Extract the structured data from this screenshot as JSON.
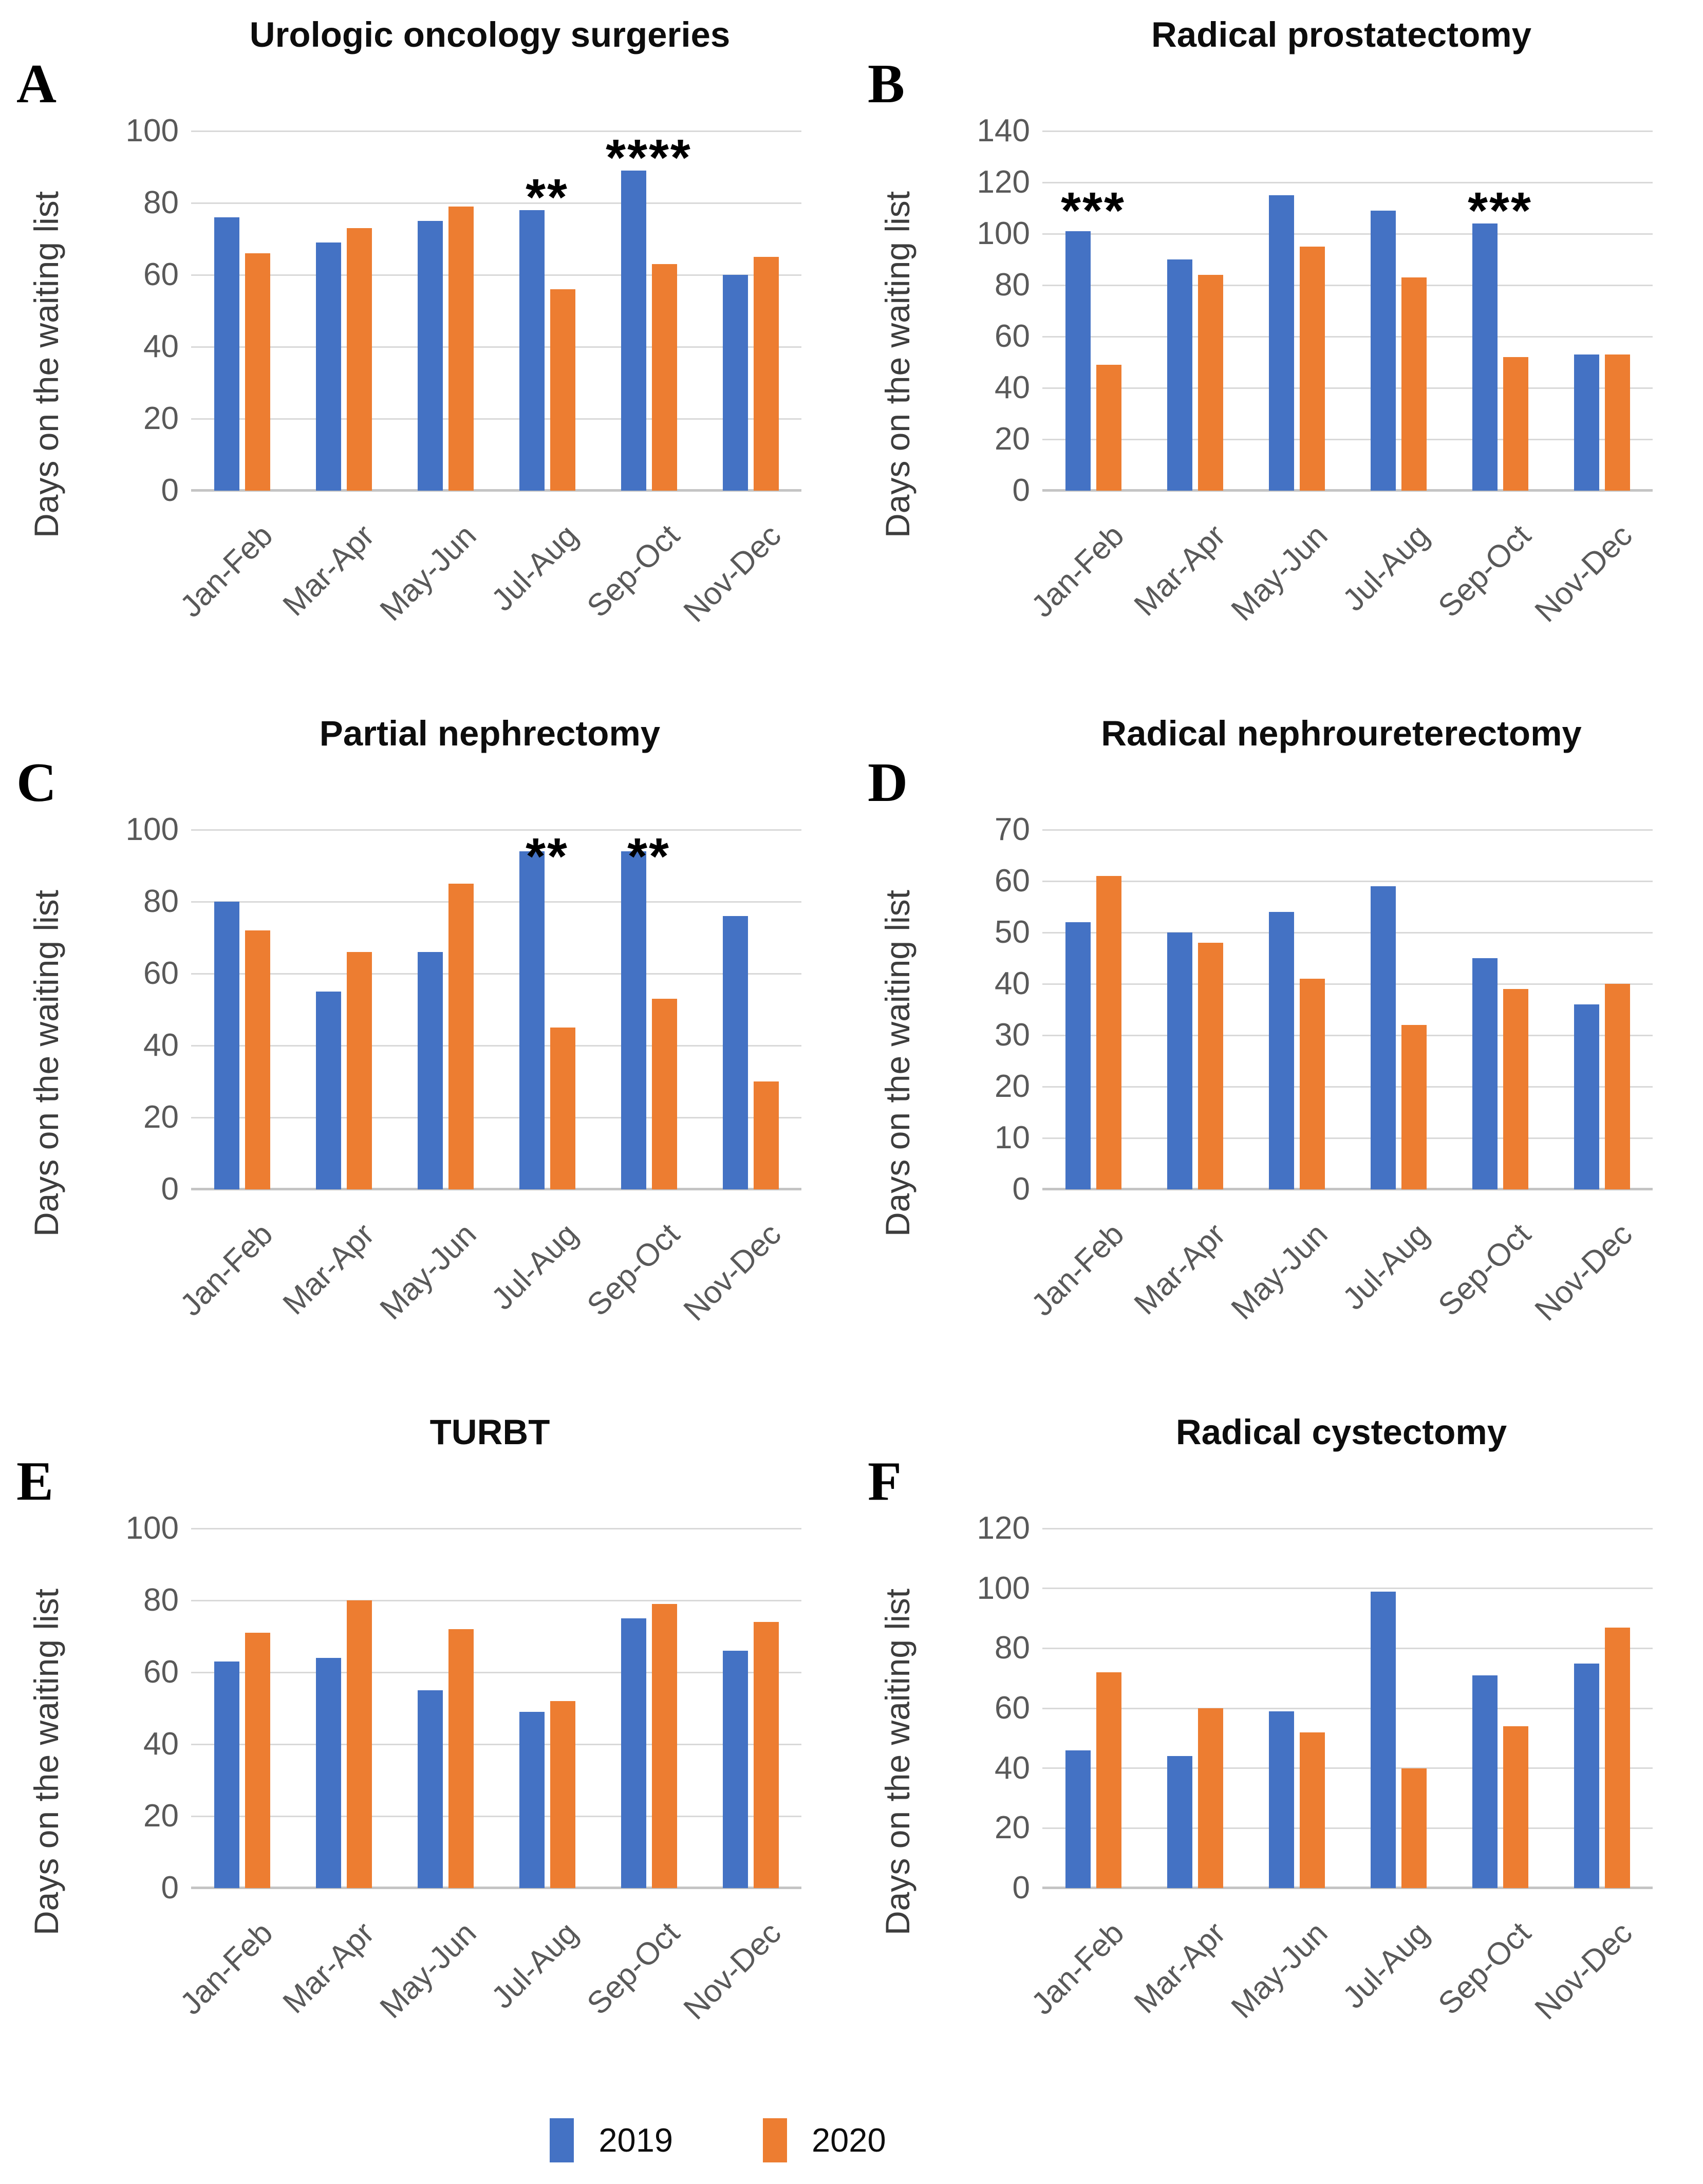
{
  "legend": {
    "items": [
      {
        "label": "2019",
        "color": "#4472C4"
      },
      {
        "label": "2020",
        "color": "#ED7D31"
      }
    ]
  },
  "colors": {
    "bar_2019": "#4472C4",
    "bar_2020": "#ED7D31",
    "gridline": "#d9d9d9",
    "axis_baseline": "#c4c4c4",
    "tick_text": "#595959",
    "ylabel_text": "#3d3d3d",
    "title_text": "#0d0d0d",
    "annotation_text": "#000000"
  },
  "chart_data": [
    {
      "type": "bar",
      "panel": "A",
      "title": "Urologic oncology surgeries",
      "ylabel": "Days on the waiting list",
      "categories": [
        "Jan-Feb",
        "Mar-Apr",
        "May-Jun",
        "Jul-Aug",
        "Sep-Oct",
        "Nov-Dec"
      ],
      "series": [
        {
          "name": "2019",
          "color": "#4472C4",
          "values": [
            76,
            69,
            75,
            78,
            89,
            60
          ]
        },
        {
          "name": "2020",
          "color": "#ED7D31",
          "values": [
            66,
            73,
            79,
            56,
            63,
            65
          ]
        }
      ],
      "ylim": [
        0,
        100
      ],
      "yticks": [
        0,
        20,
        40,
        60,
        80,
        100
      ],
      "grid": "horizontal",
      "annotations": [
        {
          "category_index": 3,
          "text": "**",
          "y": 78
        },
        {
          "category_index": 4,
          "text": "****",
          "y": 89
        }
      ]
    },
    {
      "type": "bar",
      "panel": "B",
      "title": "Radical prostatectomy",
      "ylabel": "Days on the waiting list",
      "categories": [
        "Jan-Feb",
        "Mar-Apr",
        "May-Jun",
        "Jul-Aug",
        "Sep-Oct",
        "Nov-Dec"
      ],
      "series": [
        {
          "name": "2019",
          "color": "#4472C4",
          "values": [
            101,
            90,
            115,
            109,
            104,
            53
          ]
        },
        {
          "name": "2020",
          "color": "#ED7D31",
          "values": [
            49,
            84,
            95,
            83,
            52,
            53
          ]
        }
      ],
      "ylim": [
        0,
        140
      ],
      "yticks": [
        0,
        20,
        40,
        60,
        80,
        100,
        120,
        140
      ],
      "grid": "horizontal",
      "annotations": [
        {
          "category_index": 0,
          "text": "***",
          "y": 104
        },
        {
          "category_index": 4,
          "text": "***",
          "y": 104
        }
      ]
    },
    {
      "type": "bar",
      "panel": "C",
      "title": "Partial nephrectomy",
      "ylabel": "Days on the waiting list",
      "categories": [
        "Jan-Feb",
        "Mar-Apr",
        "May-Jun",
        "Jul-Aug",
        "Sep-Oct",
        "Nov-Dec"
      ],
      "series": [
        {
          "name": "2019",
          "color": "#4472C4",
          "values": [
            80,
            55,
            66,
            94,
            94,
            76
          ]
        },
        {
          "name": "2020",
          "color": "#ED7D31",
          "values": [
            72,
            66,
            85,
            45,
            53,
            30
          ]
        }
      ],
      "ylim": [
        0,
        100
      ],
      "yticks": [
        0,
        20,
        40,
        60,
        80,
        100
      ],
      "grid": "horizontal",
      "annotations": [
        {
          "category_index": 3,
          "text": "**",
          "y": 89
        },
        {
          "category_index": 4,
          "text": "**",
          "y": 89
        }
      ]
    },
    {
      "type": "bar",
      "panel": "D",
      "title": "Radical nephroureterectomy",
      "ylabel": "Days on the waiting list",
      "categories": [
        "Jan-Feb",
        "Mar-Apr",
        "May-Jun",
        "Jul-Aug",
        "Sep-Oct",
        "Nov-Dec"
      ],
      "series": [
        {
          "name": "2019",
          "color": "#4472C4",
          "values": [
            52,
            50,
            54,
            59,
            45,
            36
          ]
        },
        {
          "name": "2020",
          "color": "#ED7D31",
          "values": [
            61,
            48,
            41,
            32,
            39,
            40
          ]
        }
      ],
      "ylim": [
        0,
        70
      ],
      "yticks": [
        0,
        10,
        20,
        30,
        40,
        50,
        60,
        70
      ],
      "grid": "horizontal",
      "annotations": []
    },
    {
      "type": "bar",
      "panel": "E",
      "title": "TURBT",
      "ylabel": "Days on the waiting list",
      "categories": [
        "Jan-Feb",
        "Mar-Apr",
        "May-Jun",
        "Jul-Aug",
        "Sep-Oct",
        "Nov-Dec"
      ],
      "series": [
        {
          "name": "2019",
          "color": "#4472C4",
          "values": [
            63,
            64,
            55,
            49,
            75,
            66
          ]
        },
        {
          "name": "2020",
          "color": "#ED7D31",
          "values": [
            71,
            80,
            72,
            52,
            79,
            74
          ]
        }
      ],
      "ylim": [
        0,
        100
      ],
      "yticks": [
        0,
        20,
        40,
        60,
        80,
        100
      ],
      "grid": "horizontal",
      "annotations": []
    },
    {
      "type": "bar",
      "panel": "F",
      "title": "Radical cystectomy",
      "ylabel": "Days on the waiting list",
      "categories": [
        "Jan-Feb",
        "Mar-Apr",
        "May-Jun",
        "Jul-Aug",
        "Sep-Oct",
        "Nov-Dec"
      ],
      "series": [
        {
          "name": "2019",
          "color": "#4472C4",
          "values": [
            46,
            44,
            59,
            99,
            71,
            75
          ]
        },
        {
          "name": "2020",
          "color": "#ED7D31",
          "values": [
            72,
            60,
            52,
            40,
            54,
            87
          ]
        }
      ],
      "ylim": [
        0,
        120
      ],
      "yticks": [
        0,
        20,
        40,
        60,
        80,
        100,
        120
      ],
      "grid": "horizontal",
      "annotations": []
    }
  ]
}
